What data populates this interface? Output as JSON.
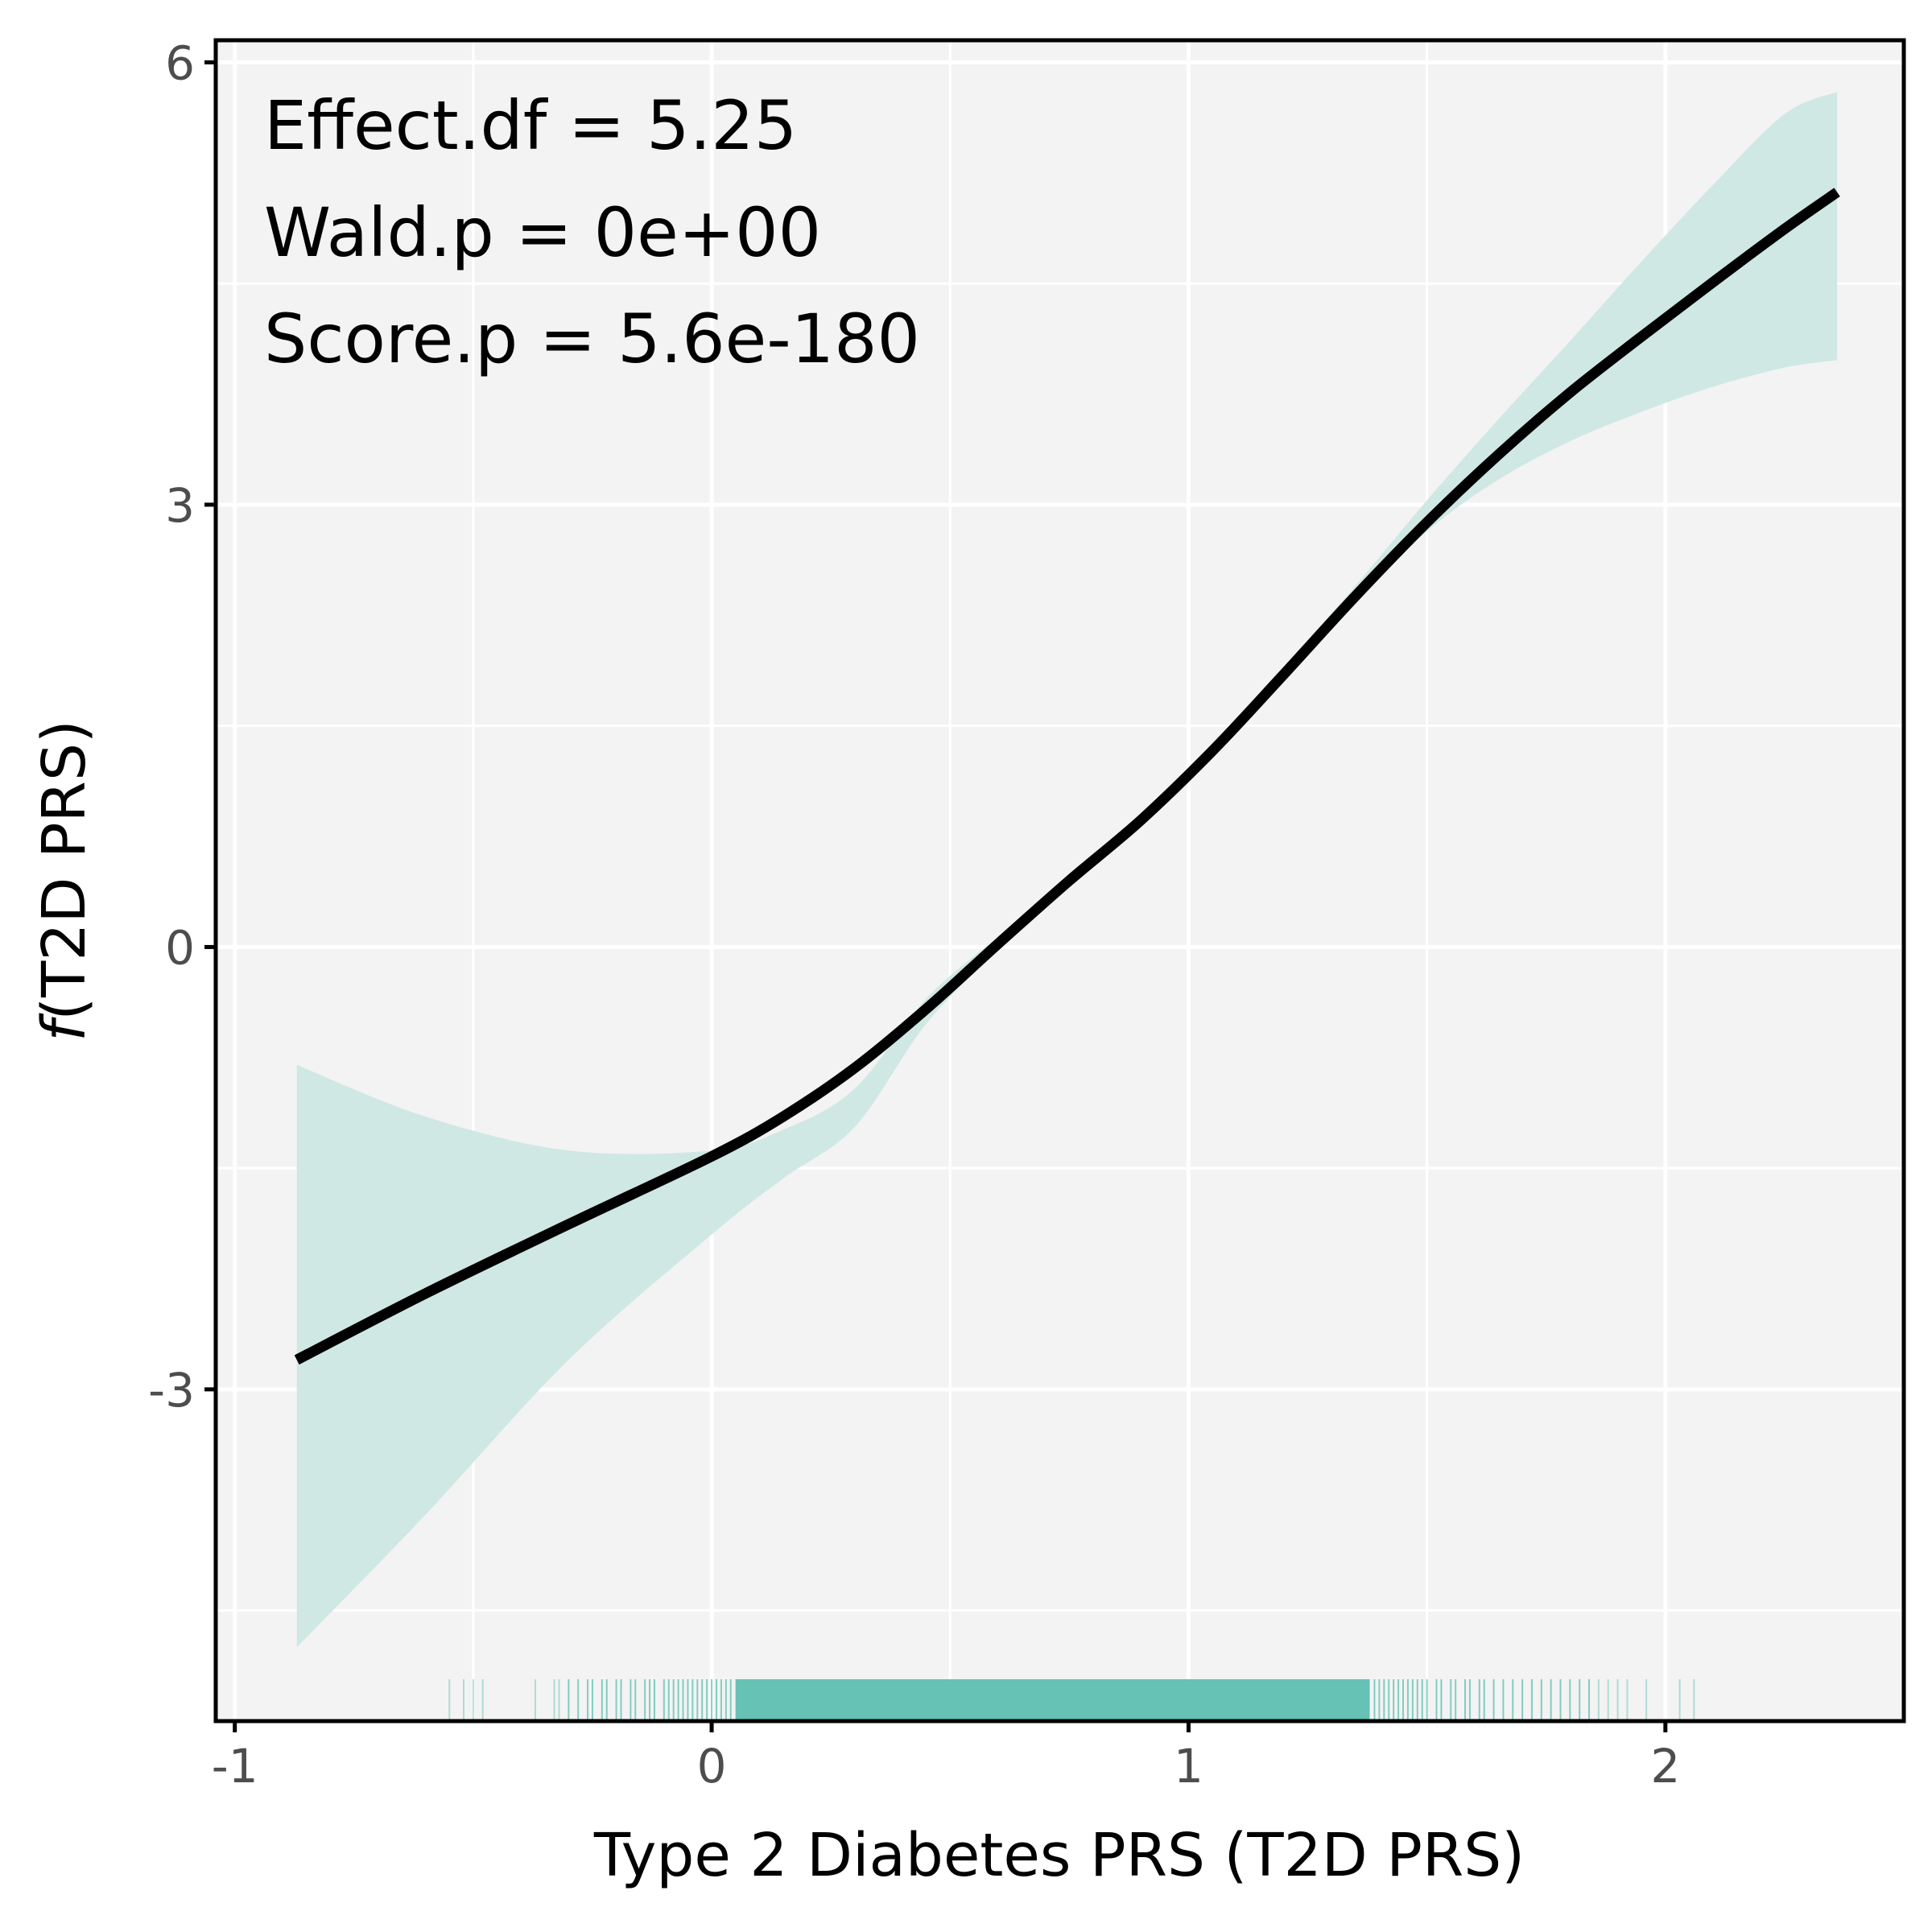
{
  "colors": {
    "panel_background": "#f3f3f3",
    "grid": "#ffffff",
    "ribbon": "#cfe8e4",
    "line": "#000000",
    "rug": "#5dbfb0",
    "frame": "#000000",
    "tick_text": "#4d4d4d"
  },
  "chart_data": {
    "type": "line",
    "title": "",
    "xlabel": "Type 2 Diabetes PRS (T2D PRS)",
    "ylabel_prefix": "f",
    "ylabel_rest": "(T2D PRS)",
    "xlim": [
      -1.04,
      2.5
    ],
    "ylim": [
      -5.25,
      6.15
    ],
    "x_ticks": [
      -1,
      0,
      1,
      2
    ],
    "x_tick_labels": [
      "-1",
      "0",
      "1",
      "2"
    ],
    "y_ticks": [
      -3,
      0,
      3,
      6
    ],
    "y_tick_labels": [
      "-3",
      "0",
      "3",
      "6"
    ],
    "x_minor_grid": [
      -0.5,
      0.5,
      1.5
    ],
    "y_minor_grid": [
      -4.5,
      -1.5,
      1.5,
      4.5
    ],
    "grid": true,
    "legend": "none",
    "annotations": [
      "Effect.df = 5.25",
      "Wald.p = 0e+00",
      "Score.p = 5.6e-180"
    ],
    "series": [
      {
        "x": [
          -0.87,
          -0.6,
          -0.3,
          0,
          0.15,
          0.3,
          0.45,
          0.6,
          0.75,
          0.9,
          1.05,
          1.2,
          1.35,
          1.5,
          1.65,
          1.8,
          1.95,
          2.1,
          2.25,
          2.36
        ],
        "y": [
          -2.8,
          -2.35,
          -1.88,
          -1.42,
          -1.15,
          -0.82,
          -0.42,
          0.02,
          0.45,
          0.86,
          1.33,
          1.85,
          2.38,
          2.88,
          3.34,
          3.76,
          4.14,
          4.51,
          4.87,
          5.12
        ],
        "lower": [
          -4.75,
          -3.85,
          -2.8,
          -1.95,
          -1.57,
          -1.22,
          -0.52,
          -0.02,
          0.42,
          0.83,
          1.3,
          1.83,
          2.35,
          2.82,
          3.17,
          3.43,
          3.63,
          3.8,
          3.93,
          3.98
        ],
        "upper": [
          -0.8,
          -1.15,
          -1.38,
          -1.38,
          -1.24,
          -0.96,
          -0.35,
          0.07,
          0.48,
          0.9,
          1.37,
          1.9,
          2.45,
          3.03,
          3.58,
          4.11,
          4.65,
          5.17,
          5.65,
          5.8
        ]
      }
    ],
    "rug": {
      "dense_range": [
        0.05,
        1.38
      ],
      "x": [
        -0.55,
        -0.52,
        -0.5,
        -0.48,
        -0.37,
        -0.33,
        -0.32,
        -0.3,
        -0.28,
        -0.26,
        -0.25,
        -0.23,
        -0.22,
        -0.2,
        -0.19,
        -0.17,
        -0.16,
        -0.14,
        -0.13,
        -0.12,
        -0.1,
        -0.09,
        -0.08,
        -0.07,
        -0.06,
        -0.05,
        -0.04,
        -0.03,
        -0.02,
        -0.01,
        0.0,
        0.01,
        0.02,
        0.03,
        0.04,
        1.39,
        1.4,
        1.41,
        1.42,
        1.43,
        1.44,
        1.45,
        1.46,
        1.47,
        1.48,
        1.49,
        1.5,
        1.52,
        1.53,
        1.55,
        1.56,
        1.58,
        1.59,
        1.61,
        1.62,
        1.64,
        1.66,
        1.68,
        1.7,
        1.72,
        1.74,
        1.76,
        1.78,
        1.8,
        1.82,
        1.84,
        1.86,
        1.88,
        1.9,
        1.92,
        1.96,
        2.03,
        2.06
      ]
    }
  }
}
